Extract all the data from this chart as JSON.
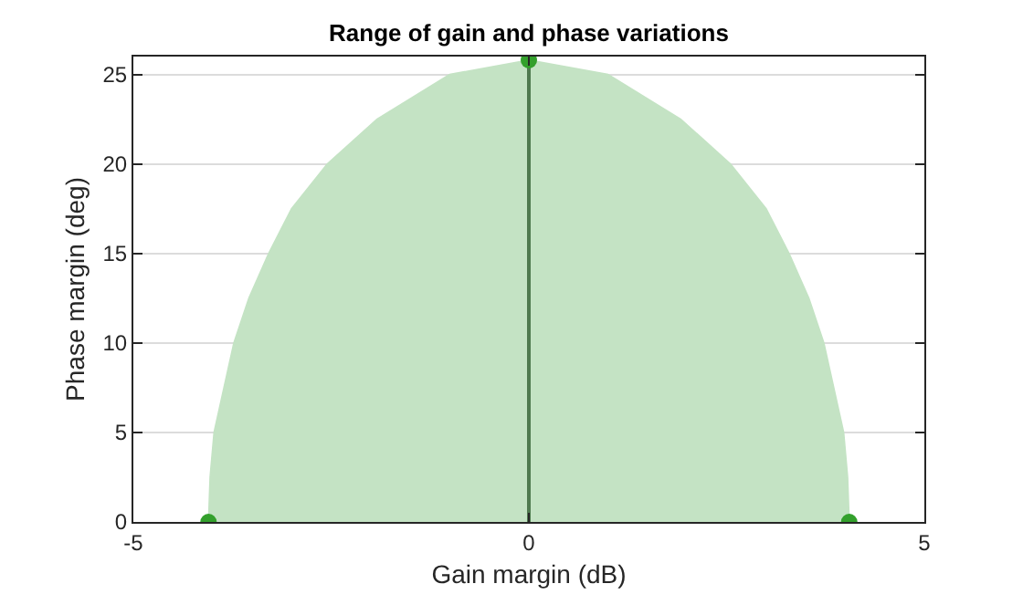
{
  "chart_data": {
    "type": "area",
    "title": "Range of gain and phase variations",
    "xlabel": "Gain margin (dB)",
    "ylabel": "Phase margin (deg)",
    "xlim": [
      -5,
      5
    ],
    "xticks": [
      -5,
      0,
      5
    ],
    "ylim": [
      0,
      26
    ],
    "yticks": [
      0,
      5,
      10,
      15,
      20,
      25
    ],
    "grid": "y",
    "series": [
      {
        "color": "#c4e3c4",
        "x": [
          -4.05,
          -4.03,
          -3.98,
          -3.73,
          -3.54,
          -3.29,
          -3.0,
          -2.55,
          -1.92,
          -1.0,
          0,
          1.0,
          1.92,
          2.55,
          3.0,
          3.29,
          3.54,
          3.73,
          3.98,
          4.03,
          4.05
        ],
        "values": [
          0,
          2.5,
          5,
          10,
          12.5,
          15,
          17.5,
          20,
          22.5,
          25,
          25.8,
          25,
          22.5,
          20,
          17.5,
          15,
          12.5,
          10,
          5,
          2.5,
          0
        ]
      },
      {
        "type": "line",
        "color": "#4f7a4f",
        "x": [
          0,
          0
        ],
        "values": [
          0,
          25.8
        ]
      },
      {
        "type": "scatter",
        "color": "#33a02c",
        "marker": "circle",
        "x": [
          -4.05,
          0,
          4.05
        ],
        "values": [
          0,
          25.8,
          0
        ]
      }
    ]
  }
}
